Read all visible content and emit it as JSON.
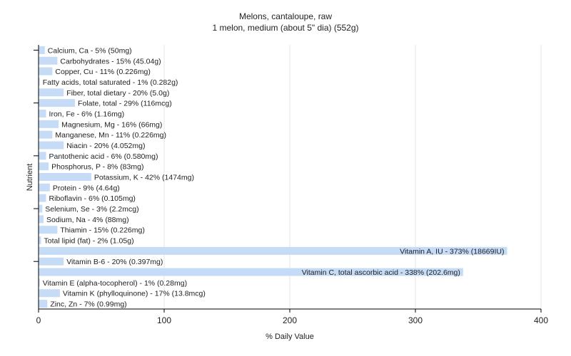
{
  "chart_data": {
    "type": "bar",
    "orientation": "horizontal",
    "title": "Melons, cantaloupe, raw",
    "subtitle": "1 melon, medium (about 5\" dia) (552g)",
    "xlabel": "% Daily Value",
    "ylabel": "Nutrient",
    "xlim": [
      0,
      400
    ],
    "xticks": [
      "0",
      "100",
      "200",
      "300",
      "400"
    ],
    "grid": true,
    "bar_color": "#c6dcf6",
    "categories": [
      "Calcium, Ca",
      "Carbohydrates",
      "Copper, Cu",
      "Fatty acids, total saturated",
      "Fiber, total dietary",
      "Folate, total",
      "Iron, Fe",
      "Magnesium, Mg",
      "Manganese, Mn",
      "Niacin",
      "Pantothenic acid",
      "Phosphorus, P",
      "Potassium, K",
      "Protein",
      "Riboflavin",
      "Selenium, Se",
      "Sodium, Na",
      "Thiamin",
      "Total lipid (fat)",
      "Vitamin A, IU",
      "Vitamin B-6",
      "Vitamin C, total ascorbic acid",
      "Vitamin E (alpha-tocopherol)",
      "Vitamin K (phylloquinone)",
      "Zinc, Zn"
    ],
    "values": [
      5,
      15,
      11,
      1,
      20,
      29,
      6,
      16,
      11,
      20,
      6,
      8,
      42,
      9,
      6,
      3,
      4,
      15,
      2,
      373,
      20,
      338,
      1,
      17,
      7
    ],
    "labels": [
      "Calcium, Ca - 5% (50mg)",
      "Carbohydrates - 15% (45.04g)",
      "Copper, Cu - 11% (0.226mg)",
      "Fatty acids, total saturated - 1% (0.282g)",
      "Fiber, total dietary - 20% (5.0g)",
      "Folate, total - 29% (116mcg)",
      "Iron, Fe - 6% (1.16mg)",
      "Magnesium, Mg - 16% (66mg)",
      "Manganese, Mn - 11% (0.226mg)",
      "Niacin - 20% (4.052mg)",
      "Pantothenic acid - 6% (0.580mg)",
      "Phosphorus, P - 8% (83mg)",
      "Potassium, K - 42% (1474mg)",
      "Protein - 9% (4.64g)",
      "Riboflavin - 6% (0.105mg)",
      "Selenium, Se - 3% (2.2mcg)",
      "Sodium, Na - 4% (88mg)",
      "Thiamin - 15% (0.226mg)",
      "Total lipid (fat) - 2% (1.05g)",
      "Vitamin A, IU - 373% (18669IU)",
      "Vitamin B-6 - 20% (0.397mg)",
      "Vitamin C, total ascorbic acid - 338% (202.6mg)",
      "Vitamin E (alpha-tocopherol) - 1% (0.28mg)",
      "Vitamin K (phylloquinone) - 17% (13.8mcg)",
      "Zinc, Zn - 7% (0.99mg)"
    ]
  }
}
